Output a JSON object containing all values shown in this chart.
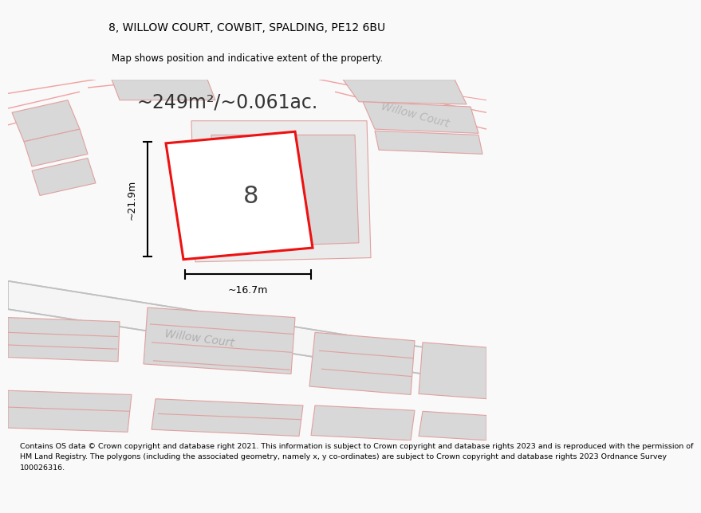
{
  "title_line1": "8, WILLOW COURT, COWBIT, SPALDING, PE12 6BU",
  "title_line2": "Map shows position and indicative extent of the property.",
  "area_text": "~249m²/~0.061ac.",
  "number_label": "8",
  "dim_width": "~16.7m",
  "dim_height": "~21.9m",
  "road_label1": "Willow Court",
  "road_label2": "Willow Court",
  "footer_text": "Contains OS data © Crown copyright and database right 2021. This information is subject to Crown copyright and database rights 2023 and is reproduced with the permission of\nHM Land Registry. The polygons (including the associated geometry, namely x, y co-ordinates) are subject to Crown copyright and database rights 2023 Ordnance Survey\n100026316.",
  "bg_color": "#f9f9f9",
  "map_bg": "#ffffff",
  "red_color": "#ee1111",
  "light_red": "#f0a0a0",
  "road_gray": "#c0c0c0",
  "building_gray": "#d8d8d8",
  "building_edge": "#e0a0a0"
}
